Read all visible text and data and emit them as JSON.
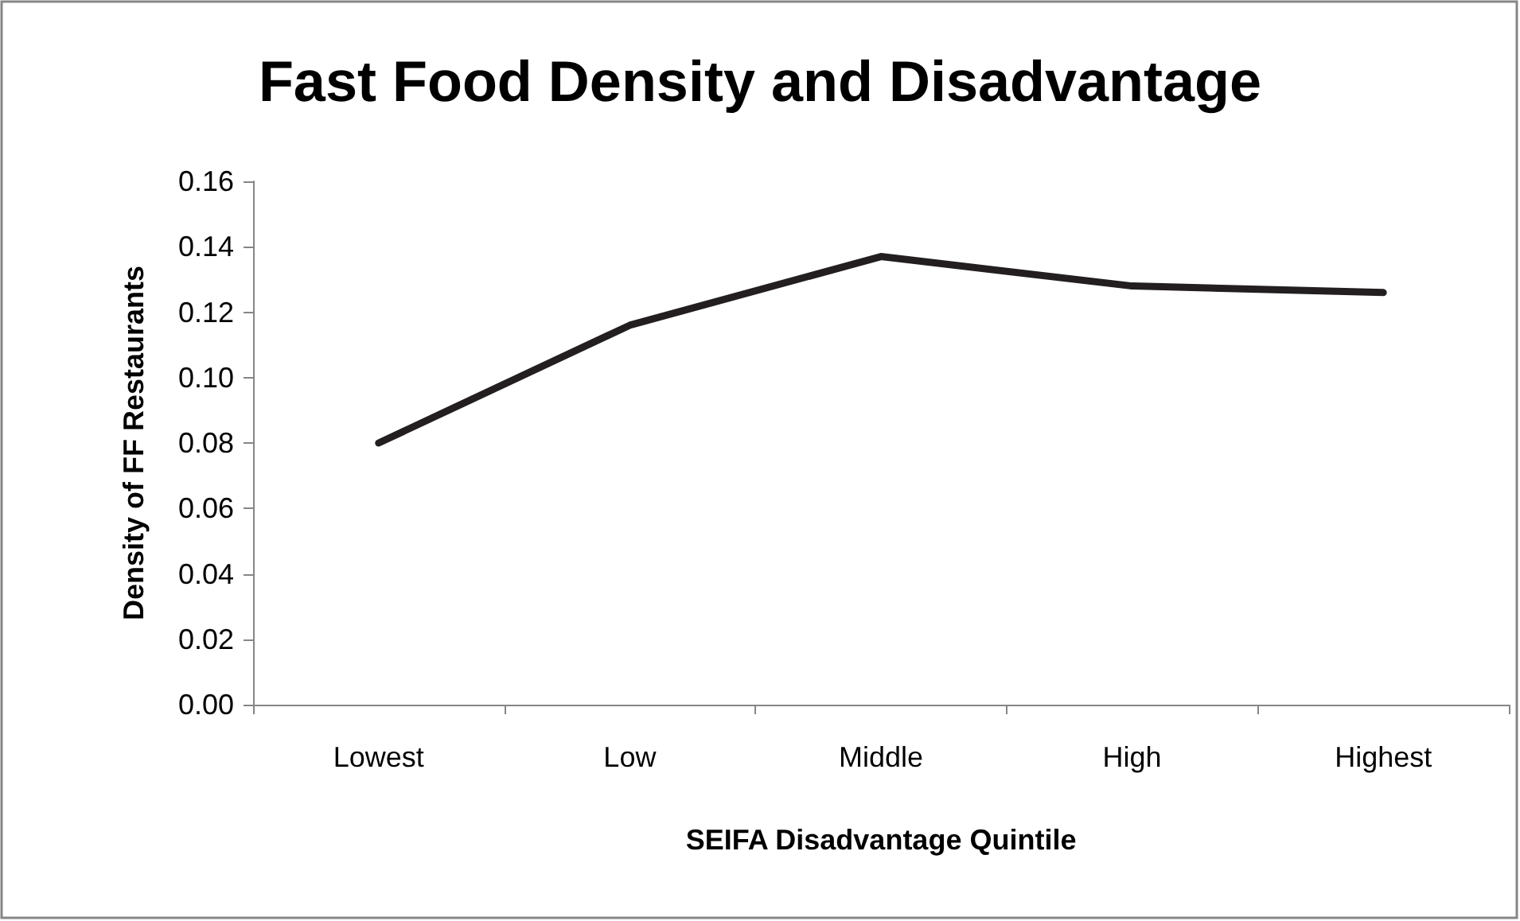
{
  "chart_data": {
    "type": "line",
    "title": "Fast Food Density and Disadvantage",
    "xlabel": "SEIFA Disadvantage Quintile",
    "ylabel": "Density of FF Restaurants",
    "categories": [
      "Lowest",
      "Low",
      "Middle",
      "High",
      "Highest"
    ],
    "series": [
      {
        "color": "#231f20",
        "values": [
          0.08,
          0.116,
          0.137,
          0.128,
          0.126
        ]
      }
    ],
    "ylim": [
      0,
      0.16
    ],
    "yticks": [
      {
        "value": 0,
        "label": "0.00"
      },
      {
        "value": 0.02,
        "label": "0.02"
      },
      {
        "value": 0.04,
        "label": "0.04"
      },
      {
        "value": 0.06,
        "label": "0.06"
      },
      {
        "value": 0.08,
        "label": "0.08"
      },
      {
        "value": 0.1,
        "label": "0.10"
      },
      {
        "value": 0.12,
        "label": "0.12"
      },
      {
        "value": 0.14,
        "label": "0.14"
      },
      {
        "value": 0.16,
        "label": "0.16"
      }
    ],
    "grid": false,
    "marker": "none",
    "line_style": "solid"
  }
}
